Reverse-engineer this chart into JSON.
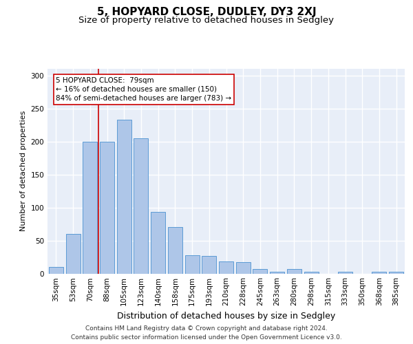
{
  "title": "5, HOPYARD CLOSE, DUDLEY, DY3 2XJ",
  "subtitle": "Size of property relative to detached houses in Sedgley",
  "xlabel": "Distribution of detached houses by size in Sedgley",
  "ylabel": "Number of detached properties",
  "categories": [
    "35sqm",
    "53sqm",
    "70sqm",
    "88sqm",
    "105sqm",
    "123sqm",
    "140sqm",
    "158sqm",
    "175sqm",
    "193sqm",
    "210sqm",
    "228sqm",
    "245sqm",
    "263sqm",
    "280sqm",
    "298sqm",
    "315sqm",
    "333sqm",
    "350sqm",
    "368sqm",
    "385sqm"
  ],
  "values": [
    10,
    60,
    200,
    200,
    233,
    205,
    93,
    70,
    28,
    27,
    18,
    17,
    7,
    3,
    7,
    3,
    0,
    3,
    0,
    3,
    3
  ],
  "bar_color": "#aec6e8",
  "bar_edge_color": "#5b9bd5",
  "marker_index": 2,
  "marker_color": "#cc0000",
  "annotation_line1": "5 HOPYARD CLOSE:  79sqm",
  "annotation_line2": "← 16% of detached houses are smaller (150)",
  "annotation_line3": "84% of semi-detached houses are larger (783) →",
  "annotation_box_color": "#cc0000",
  "ylim": [
    0,
    310
  ],
  "yticks": [
    0,
    50,
    100,
    150,
    200,
    250,
    300
  ],
  "background_color": "#e8eef8",
  "grid_color": "#ffffff",
  "footer_line1": "Contains HM Land Registry data © Crown copyright and database right 2024.",
  "footer_line2": "Contains public sector information licensed under the Open Government Licence v3.0.",
  "title_fontsize": 11,
  "subtitle_fontsize": 9.5,
  "xlabel_fontsize": 9,
  "ylabel_fontsize": 8,
  "tick_fontsize": 7.5,
  "annotation_fontsize": 7.5,
  "footer_fontsize": 6.5
}
